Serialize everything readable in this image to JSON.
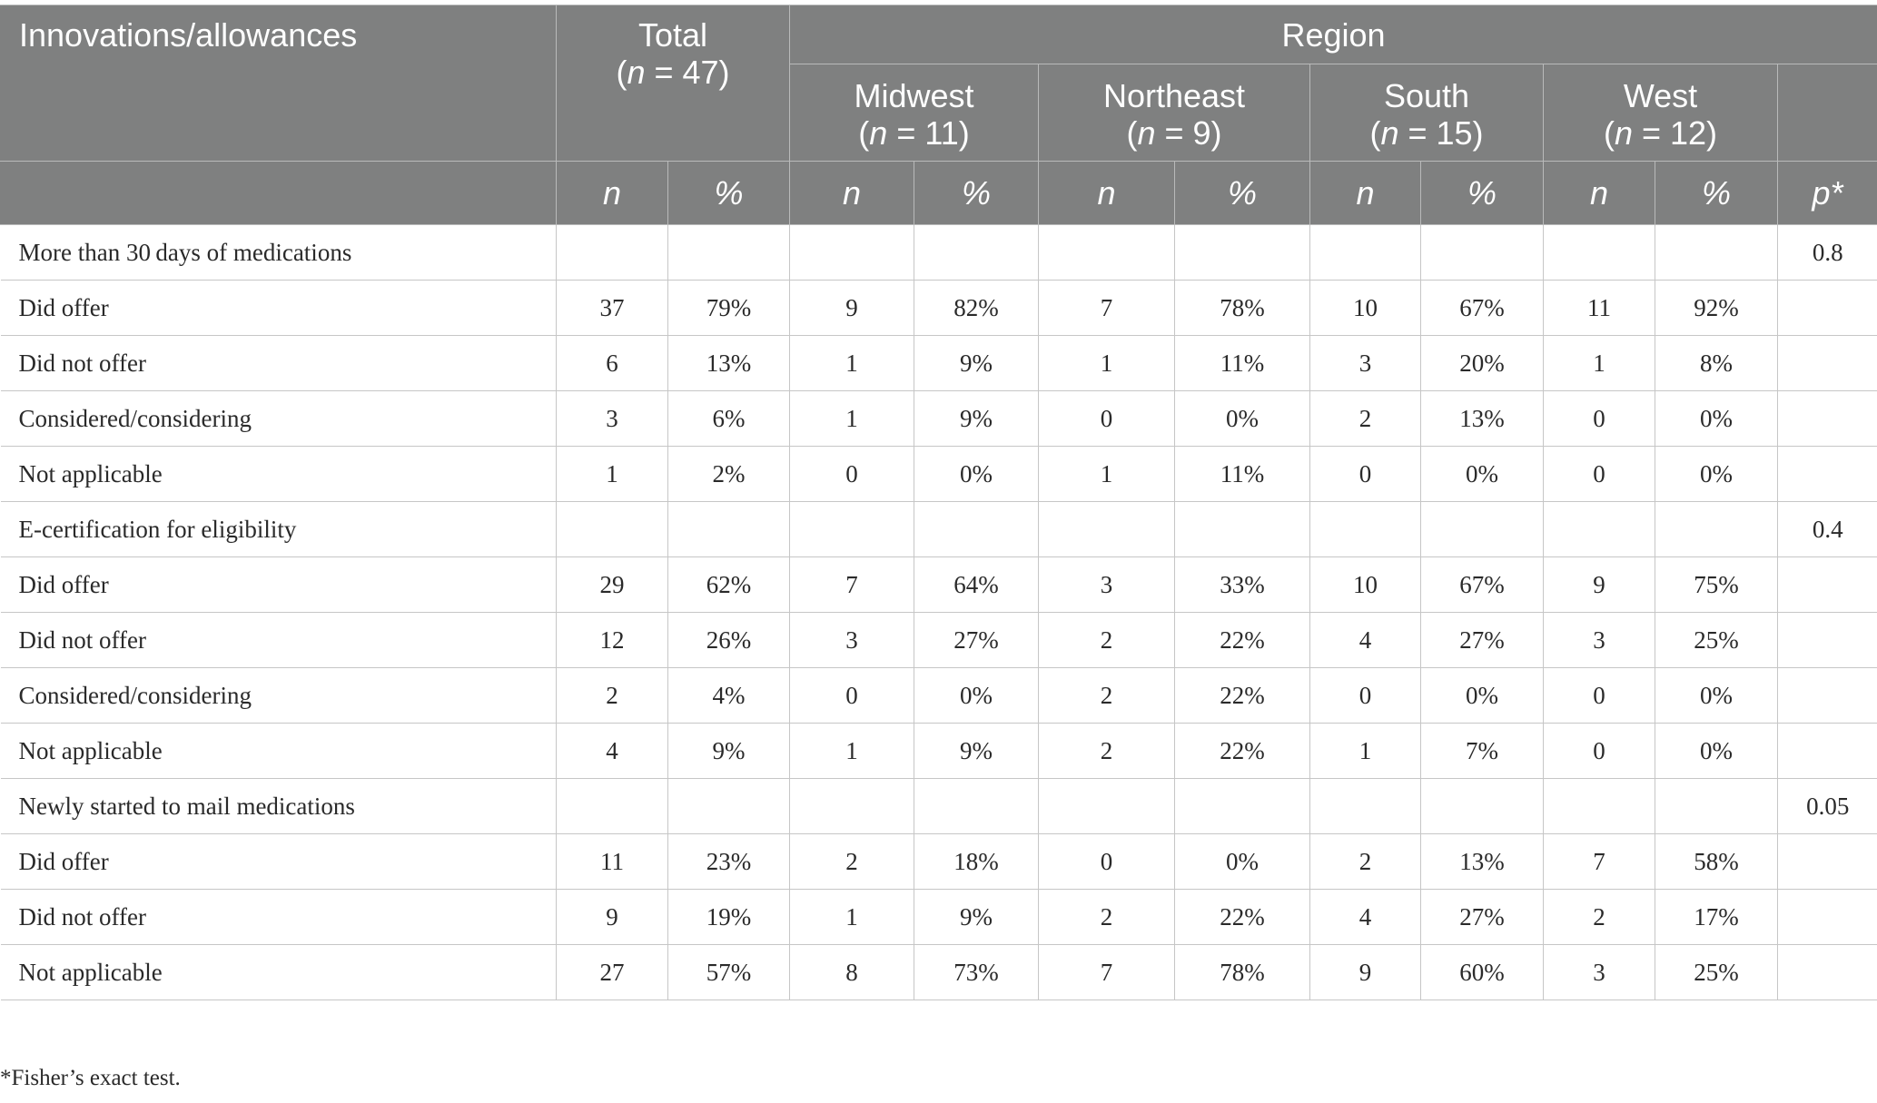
{
  "header": {
    "first_col": "Innovations/allowances",
    "total": {
      "label": "Total",
      "n_open": "(",
      "n_italic": "n",
      "n_rest": " = 47)"
    },
    "region": "Region",
    "regions": [
      {
        "name": "Midwest",
        "n_open": "(",
        "n_italic": "n",
        "n_rest": " = 11)"
      },
      {
        "name": "Northeast",
        "n_open": "(",
        "n_italic": "n",
        "n_rest": " = 9)"
      },
      {
        "name": "South",
        "n_open": "(",
        "n_italic": "n",
        "n_rest": " = 15)"
      },
      {
        "name": "West",
        "n_open": "(",
        "n_italic": "n",
        "n_rest": " = 12)"
      }
    ],
    "sub": {
      "n": "n",
      "pct": "%",
      "p": "p*"
    }
  },
  "rows": [
    {
      "label": "More than 30 days of medications",
      "cells": [
        "",
        "",
        "",
        "",
        "",
        "",
        "",
        "",
        "",
        ""
      ],
      "p": "0.8"
    },
    {
      "label": "Did offer",
      "cells": [
        "37",
        "79%",
        "9",
        "82%",
        "7",
        "78%",
        "10",
        "67%",
        "11",
        "92%"
      ],
      "p": ""
    },
    {
      "label": "Did not offer",
      "cells": [
        "6",
        "13%",
        "1",
        "9%",
        "1",
        "11%",
        "3",
        "20%",
        "1",
        "8%"
      ],
      "p": ""
    },
    {
      "label": "Considered/considering",
      "cells": [
        "3",
        "6%",
        "1",
        "9%",
        "0",
        "0%",
        "2",
        "13%",
        "0",
        "0%"
      ],
      "p": ""
    },
    {
      "label": "Not applicable",
      "cells": [
        "1",
        "2%",
        "0",
        "0%",
        "1",
        "11%",
        "0",
        "0%",
        "0",
        "0%"
      ],
      "p": ""
    },
    {
      "label": "E-certification for eligibility",
      "cells": [
        "",
        "",
        "",
        "",
        "",
        "",
        "",
        "",
        "",
        ""
      ],
      "p": "0.4"
    },
    {
      "label": "Did offer",
      "cells": [
        "29",
        "62%",
        "7",
        "64%",
        "3",
        "33%",
        "10",
        "67%",
        "9",
        "75%"
      ],
      "p": ""
    },
    {
      "label": "Did not offer",
      "cells": [
        "12",
        "26%",
        "3",
        "27%",
        "2",
        "22%",
        "4",
        "27%",
        "3",
        "25%"
      ],
      "p": ""
    },
    {
      "label": "Considered/considering",
      "cells": [
        "2",
        "4%",
        "0",
        "0%",
        "2",
        "22%",
        "0",
        "0%",
        "0",
        "0%"
      ],
      "p": ""
    },
    {
      "label": "Not applicable",
      "cells": [
        "4",
        "9%",
        "1",
        "9%",
        "2",
        "22%",
        "1",
        "7%",
        "0",
        "0%"
      ],
      "p": ""
    },
    {
      "label": "Newly started to mail medications",
      "cells": [
        "",
        "",
        "",
        "",
        "",
        "",
        "",
        "",
        "",
        ""
      ],
      "p": "0.05"
    },
    {
      "label": "Did offer",
      "cells": [
        "11",
        "23%",
        "2",
        "18%",
        "0",
        "0%",
        "2",
        "13%",
        "7",
        "58%"
      ],
      "p": ""
    },
    {
      "label": "Did not offer",
      "cells": [
        "9",
        "19%",
        "1",
        "9%",
        "2",
        "22%",
        "4",
        "27%",
        "2",
        "17%"
      ],
      "p": ""
    },
    {
      "label": "Not applicable",
      "cells": [
        "27",
        "57%",
        "8",
        "73%",
        "7",
        "78%",
        "9",
        "60%",
        "3",
        "25%"
      ],
      "p": ""
    }
  ],
  "footnote": "*Fisher’s exact test."
}
